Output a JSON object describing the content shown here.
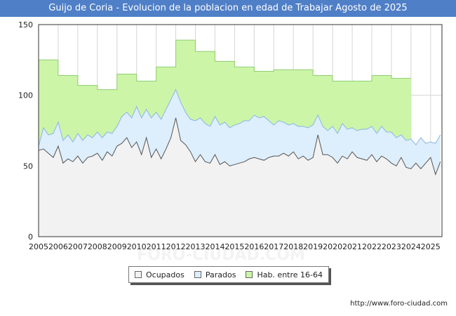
{
  "title": "Guijo de Coria - Evolucion de la poblacion en edad de Trabajar Agosto de 2025",
  "footer": "http://www.foro-ciudad.com",
  "watermark": "FORO-CIUDAD.COM",
  "colors": {
    "title_bg": "#4f7fc7",
    "hab_fill": "#ccf5a8",
    "hab_line": "#8fcf70",
    "parados_fill": "#ddeefc",
    "parados_line": "#8ab6e6",
    "ocupados_fill": "#f2f2f2",
    "ocupados_line": "#555555",
    "grid": "#d6d6d6"
  },
  "chart_data": {
    "type": "area",
    "ylim": [
      0,
      150
    ],
    "yticks": [
      0,
      50,
      100,
      150
    ],
    "xlim": [
      2005,
      2025.58
    ],
    "xticks": [
      "2005",
      "2006",
      "2007",
      "2008",
      "2009",
      "2010",
      "2011",
      "2012",
      "2013",
      "2014",
      "2015",
      "2016",
      "2017",
      "2018",
      "2019",
      "2020",
      "2021",
      "2022",
      "2023",
      "2024",
      "2025"
    ],
    "legend": [
      {
        "key": "ocupados",
        "label": "Ocupados"
      },
      {
        "key": "parados",
        "label": "Parados"
      },
      {
        "key": "hab",
        "label": "Hab. entre 16-64"
      }
    ],
    "hab_entre_16_64": {
      "years": [
        2005,
        2006,
        2007,
        2008,
        2009,
        2010,
        2011,
        2012,
        2013,
        2014,
        2015,
        2016,
        2017,
        2018,
        2019,
        2020,
        2021,
        2022,
        2023
      ],
      "values": [
        125,
        114,
        107,
        104,
        115,
        110,
        120,
        139,
        131,
        124,
        120,
        117,
        118,
        118,
        114,
        110,
        110,
        114,
        112
      ]
    },
    "ocupados": {
      "x": [
        2005.0,
        2005.25,
        2005.5,
        2005.75,
        2006.0,
        2006.25,
        2006.5,
        2006.75,
        2007.0,
        2007.25,
        2007.5,
        2007.75,
        2008.0,
        2008.25,
        2008.5,
        2008.75,
        2009.0,
        2009.25,
        2009.5,
        2009.75,
        2010.0,
        2010.25,
        2010.5,
        2010.75,
        2011.0,
        2011.25,
        2011.5,
        2011.75,
        2012.0,
        2012.25,
        2012.5,
        2012.75,
        2013.0,
        2013.25,
        2013.5,
        2013.75,
        2014.0,
        2014.25,
        2014.5,
        2014.75,
        2015.0,
        2015.25,
        2015.5,
        2015.75,
        2016.0,
        2016.25,
        2016.5,
        2016.75,
        2017.0,
        2017.25,
        2017.5,
        2017.75,
        2018.0,
        2018.25,
        2018.5,
        2018.75,
        2019.0,
        2019.25,
        2019.5,
        2019.75,
        2020.0,
        2020.25,
        2020.5,
        2020.75,
        2021.0,
        2021.25,
        2021.5,
        2021.75,
        2022.0,
        2022.25,
        2022.5,
        2022.75,
        2023.0,
        2023.25,
        2023.5,
        2023.75,
        2024.0,
        2024.25,
        2024.5,
        2024.75,
        2025.0,
        2025.25,
        2025.5
      ],
      "values": [
        61,
        62,
        59,
        56,
        64,
        52,
        55,
        53,
        57,
        52,
        56,
        57,
        59,
        54,
        60,
        57,
        64,
        66,
        70,
        63,
        67,
        58,
        70,
        56,
        62,
        55,
        62,
        70,
        84,
        68,
        65,
        60,
        53,
        58,
        53,
        52,
        58,
        51,
        53,
        50,
        51,
        52,
        53,
        55,
        56,
        55,
        54,
        56,
        57,
        57,
        59,
        57,
        60,
        55,
        57,
        54,
        56,
        72,
        58,
        58,
        56,
        52,
        57,
        55,
        60,
        56,
        55,
        54,
        58,
        53,
        57,
        55,
        52,
        50,
        56,
        49,
        48,
        52,
        48,
        52,
        56,
        44,
        53
      ]
    },
    "parados": {
      "x": [
        2005.0,
        2005.25,
        2005.5,
        2005.75,
        2006.0,
        2006.25,
        2006.5,
        2006.75,
        2007.0,
        2007.25,
        2007.5,
        2007.75,
        2008.0,
        2008.25,
        2008.5,
        2008.75,
        2009.0,
        2009.25,
        2009.5,
        2009.75,
        2010.0,
        2010.25,
        2010.5,
        2010.75,
        2011.0,
        2011.25,
        2011.5,
        2011.75,
        2012.0,
        2012.25,
        2012.5,
        2012.75,
        2013.0,
        2013.25,
        2013.5,
        2013.75,
        2014.0,
        2014.25,
        2014.5,
        2014.75,
        2015.0,
        2015.25,
        2015.5,
        2015.75,
        2016.0,
        2016.25,
        2016.5,
        2016.75,
        2017.0,
        2017.25,
        2017.5,
        2017.75,
        2018.0,
        2018.25,
        2018.5,
        2018.75,
        2019.0,
        2019.25,
        2019.5,
        2019.75,
        2020.0,
        2020.25,
        2020.5,
        2020.75,
        2021.0,
        2021.25,
        2021.5,
        2021.75,
        2022.0,
        2022.25,
        2022.5,
        2022.75,
        2023.0,
        2023.25,
        2023.5,
        2023.75,
        2024.0,
        2024.25,
        2024.5,
        2024.75,
        2025.0,
        2025.25,
        2025.5
      ],
      "values": [
        64,
        77,
        72,
        73,
        81,
        68,
        72,
        67,
        73,
        68,
        72,
        70,
        74,
        70,
        74,
        73,
        78,
        85,
        88,
        84,
        92,
        84,
        90,
        84,
        88,
        83,
        90,
        97,
        104,
        95,
        88,
        83,
        82,
        84,
        80,
        78,
        85,
        79,
        81,
        77,
        79,
        80,
        82,
        82,
        86,
        84,
        85,
        82,
        79,
        82,
        81,
        79,
        80,
        78,
        78,
        77,
        79,
        86,
        78,
        75,
        78,
        73,
        80,
        76,
        77,
        75,
        76,
        76,
        78,
        73,
        78,
        74,
        74,
        70,
        72,
        68,
        69,
        65,
        70,
        66,
        67,
        66,
        72
      ]
    }
  }
}
